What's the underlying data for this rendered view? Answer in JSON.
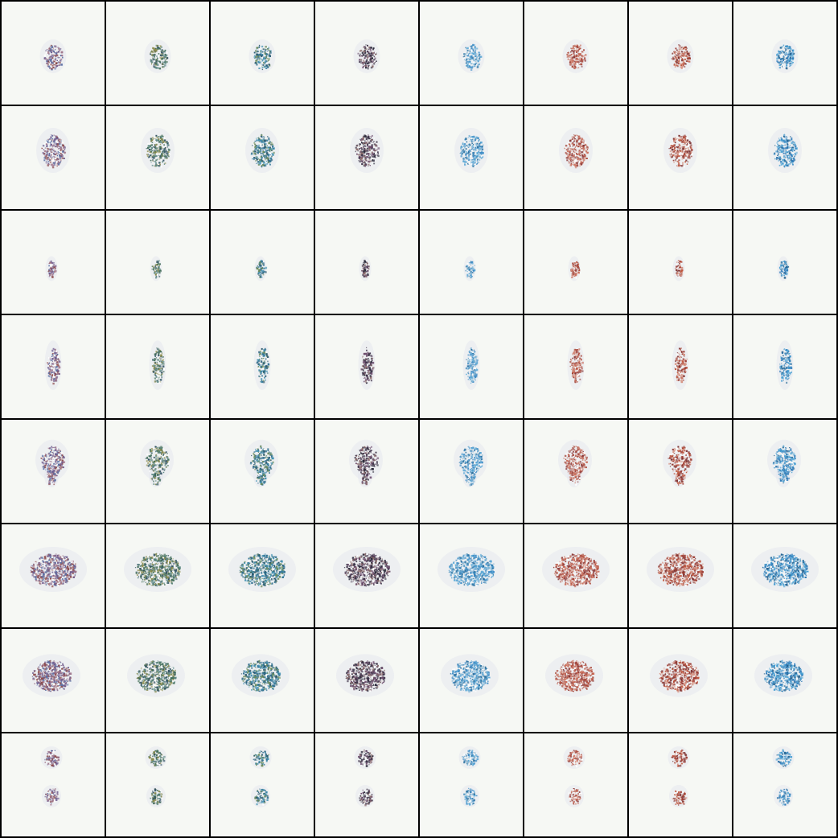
{
  "grid": {
    "rows": 8,
    "cols": 8,
    "background_color": "#000000",
    "tile_background": "#f6f8f4",
    "palette": {
      "purple": [
        "#6e5a8c",
        "#a27a8e",
        "#5a6fa3",
        "#8c4a4a"
      ],
      "green": [
        "#3f6b55",
        "#5f8a86",
        "#2f4f5f",
        "#8a8a4a"
      ],
      "teal": [
        "#2f6f8f",
        "#3f8fb0",
        "#27556a",
        "#6a8a5a"
      ],
      "dark": [
        "#3a3046",
        "#6a4a6a",
        "#2a2a3a",
        "#8a6a6a"
      ],
      "blue": [
        "#3b8bc6",
        "#5aa8d6",
        "#2a6f9e",
        "#7fb4d4"
      ],
      "red": [
        "#a8473a",
        "#c96a56",
        "#8a3a3a",
        "#d08a7a"
      ],
      "crimson": [
        "#9a3a32",
        "#c0583f",
        "#7a3030",
        "#d89a8a"
      ],
      "cobalt": [
        "#2e7ab8",
        "#3f9ad0",
        "#24628f",
        "#6ab0d8"
      ]
    },
    "columns": [
      "purple",
      "green",
      "teal",
      "dark",
      "blue",
      "red",
      "crimson",
      "cobalt"
    ],
    "row_shapes": [
      {
        "shape": "small-egg"
      },
      {
        "shape": "medium-egg"
      },
      {
        "shape": "tiny-spot"
      },
      {
        "shape": "vertical-streak"
      },
      {
        "shape": "irregular-blob"
      },
      {
        "shape": "large-ellipse"
      },
      {
        "shape": "medium-ellipse"
      },
      {
        "shape": "two-spots"
      }
    ]
  }
}
